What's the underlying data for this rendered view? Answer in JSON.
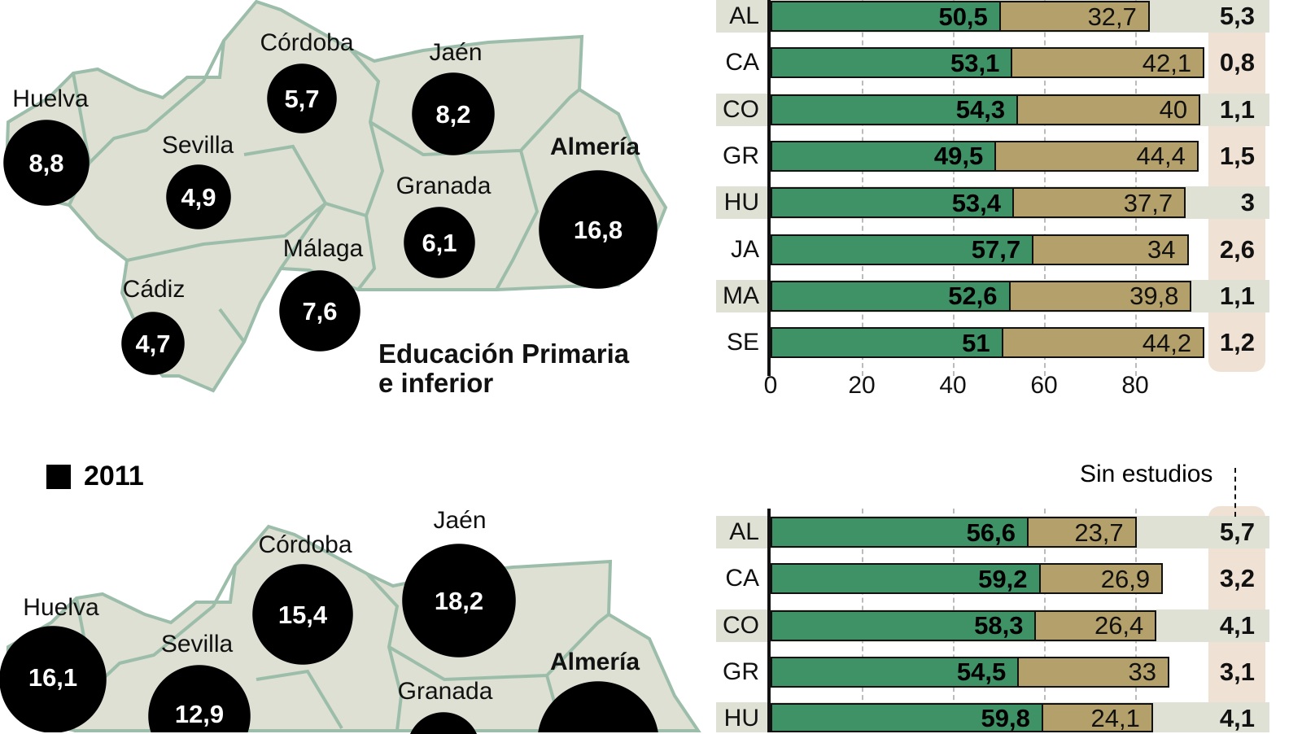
{
  "colors": {
    "primary": "#3f9266",
    "secondary": "#b4a06a",
    "sin_estudios_bg": "#efe2d4",
    "band": "#dfe1d5",
    "map_fill": "#dde0d2",
    "map_border": "#9dbdab",
    "bubble": "#000000"
  },
  "top_map": {
    "title_line1": "Educación Primaria",
    "title_line2": "e inferior",
    "provinces": [
      {
        "name": "Huelva",
        "value": "8,8"
      },
      {
        "name": "Sevilla",
        "value": "4,9"
      },
      {
        "name": "Córdoba",
        "value": "5,7"
      },
      {
        "name": "Jaén",
        "value": "8,2"
      },
      {
        "name": "Granada",
        "value": "6,1"
      },
      {
        "name": "Almería",
        "value": "16,8"
      },
      {
        "name": "Málaga",
        "value": "7,6"
      },
      {
        "name": "Cádiz",
        "value": "4,7"
      }
    ]
  },
  "legend": {
    "year": "2011",
    "icon": "black-square"
  },
  "bottom_map": {
    "provinces": [
      {
        "name": "Huelva",
        "value": "16,1"
      },
      {
        "name": "Sevilla",
        "value": "12,9"
      },
      {
        "name": "Córdoba",
        "value": "15,4"
      },
      {
        "name": "Jaén",
        "value": "18,2"
      },
      {
        "name": "Granada",
        "value": ""
      },
      {
        "name": "Almería",
        "value": ""
      }
    ]
  },
  "chart_data": [
    {
      "type": "bar",
      "orientation": "horizontal",
      "stacked": true,
      "categories": [
        "AL",
        "CA",
        "CO",
        "GR",
        "HU",
        "JA",
        "MA",
        "SE"
      ],
      "series": [
        {
          "values": [
            50.5,
            53.1,
            54.3,
            49.5,
            53.4,
            57.7,
            52.6,
            51
          ],
          "labels": [
            "50,5",
            "53,1",
            "54,3",
            "49,5",
            "53,4",
            "57,7",
            "52,6",
            "51"
          ]
        },
        {
          "values": [
            32.7,
            42.1,
            40,
            44.4,
            37.7,
            34,
            39.8,
            44.2
          ],
          "labels": [
            "32,7",
            "42,1",
            "40",
            "44,4",
            "37,7",
            "34",
            "39,8",
            "44,2"
          ]
        }
      ],
      "sin_estudios": [
        "5,3",
        "0,8",
        "1,1",
        "1,5",
        "3",
        "2,6",
        "1,1",
        "1,2"
      ],
      "xticks": [
        "0",
        "20",
        "40",
        "60",
        "80"
      ],
      "xlim": [
        0,
        100
      ],
      "grid": true
    },
    {
      "type": "bar",
      "orientation": "horizontal",
      "stacked": true,
      "sin_estudios_label": "Sin estudios",
      "categories": [
        "AL",
        "CA",
        "CO",
        "GR",
        "HU"
      ],
      "series": [
        {
          "values": [
            56.6,
            59.2,
            58.3,
            54.5,
            59.8
          ],
          "labels": [
            "56,6",
            "59,2",
            "58,3",
            "54,5",
            "59,8"
          ]
        },
        {
          "values": [
            23.7,
            26.9,
            26.4,
            33,
            24.1
          ],
          "labels": [
            "23,7",
            "26,9",
            "26,4",
            "33",
            "24,1"
          ]
        }
      ],
      "sin_estudios": [
        "5,7",
        "3,2",
        "4,1",
        "3,1",
        "4,1"
      ],
      "xlim": [
        0,
        100
      ],
      "grid": true
    }
  ]
}
